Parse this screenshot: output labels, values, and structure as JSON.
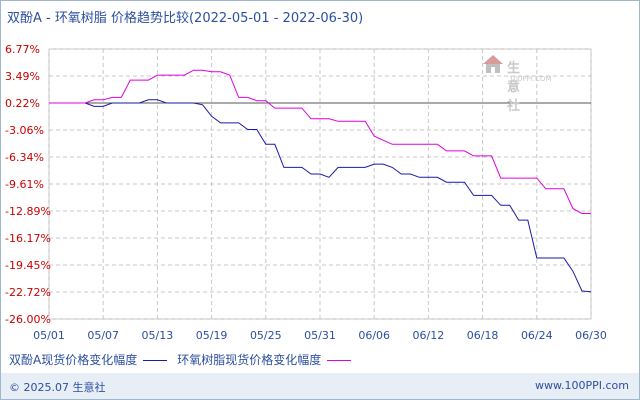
{
  "title": "双酚A - 环氧树脂 价格趋势比较(2022-05-01 - 2022-06-30)",
  "watermark": {
    "text": "生意社",
    "sub": "100PPI.COM"
  },
  "chart_data": {
    "type": "line",
    "x": [
      "05/01",
      "05/02",
      "05/03",
      "05/04",
      "05/05",
      "05/06",
      "05/07",
      "05/08",
      "05/09",
      "05/10",
      "05/11",
      "05/12",
      "05/13",
      "05/14",
      "05/15",
      "05/16",
      "05/17",
      "05/18",
      "05/19",
      "05/20",
      "05/21",
      "05/22",
      "05/23",
      "05/24",
      "05/25",
      "05/26",
      "05/27",
      "05/28",
      "05/29",
      "05/30",
      "05/31",
      "06/01",
      "06/02",
      "06/03",
      "06/04",
      "06/05",
      "06/06",
      "06/07",
      "06/08",
      "06/09",
      "06/10",
      "06/11",
      "06/12",
      "06/13",
      "06/14",
      "06/15",
      "06/16",
      "06/17",
      "06/18",
      "06/19",
      "06/20",
      "06/21",
      "06/22",
      "06/23",
      "06/24",
      "06/25",
      "06/26",
      "06/27",
      "06/28",
      "06/29",
      "06/30"
    ],
    "xticks": [
      "05/01",
      "05/07",
      "05/13",
      "05/19",
      "05/25",
      "05/31",
      "06/06",
      "06/12",
      "06/18",
      "06/24",
      "06/30"
    ],
    "yticks": [
      "6.77%",
      "3.49%",
      "0.22%",
      "-3.06%",
      "-6.34%",
      "-9.61%",
      "-12.89%",
      "-16.17%",
      "-19.45%",
      "-22.72%",
      "-26.00%"
    ],
    "ylim": [
      -26.0,
      6.77
    ],
    "baseline": 0.22,
    "series": [
      {
        "name": "双酚A现货价格变化幅度",
        "color": "#1a1aa6",
        "values": [
          0.22,
          0.22,
          0.22,
          0.22,
          0.22,
          -0.2,
          -0.2,
          0.22,
          0.22,
          0.22,
          0.22,
          0.6,
          0.6,
          0.22,
          0.22,
          0.22,
          0.22,
          0.0,
          -1.4,
          -2.2,
          -2.2,
          -2.2,
          -3.0,
          -3.0,
          -4.8,
          -4.8,
          -7.6,
          -7.6,
          -7.6,
          -8.4,
          -8.4,
          -8.8,
          -7.6,
          -7.6,
          -7.6,
          -7.6,
          -7.2,
          -7.2,
          -7.6,
          -8.4,
          -8.4,
          -8.8,
          -8.8,
          -8.8,
          -9.4,
          -9.4,
          -9.4,
          -11.0,
          -11.0,
          -11.0,
          -12.2,
          -12.2,
          -14.0,
          -14.0,
          -18.6,
          -18.6,
          -18.6,
          -18.6,
          -20.2,
          -22.6,
          -22.7
        ]
      },
      {
        "name": "环氧树脂现货价格变化幅度",
        "color": "#e000e0",
        "values": [
          0.22,
          0.22,
          0.22,
          0.22,
          0.22,
          0.6,
          0.6,
          0.9,
          0.9,
          3.0,
          3.0,
          3.0,
          3.6,
          3.6,
          3.6,
          3.6,
          4.2,
          4.2,
          4.0,
          4.0,
          3.6,
          0.9,
          0.9,
          0.5,
          0.5,
          -0.4,
          -0.4,
          -0.4,
          -0.4,
          -1.7,
          -1.7,
          -1.7,
          -2.0,
          -2.0,
          -2.0,
          -2.0,
          -3.8,
          -4.3,
          -4.8,
          -4.8,
          -4.8,
          -4.8,
          -4.8,
          -4.8,
          -5.6,
          -5.6,
          -5.6,
          -6.2,
          -6.2,
          -6.2,
          -8.9,
          -8.9,
          -8.9,
          -8.9,
          -8.9,
          -10.2,
          -10.2,
          -10.2,
          -12.6,
          -13.2,
          -13.2
        ]
      }
    ]
  },
  "footer": {
    "copyright": "© 2025.07 生意社",
    "site": "www.100PPI.com"
  }
}
